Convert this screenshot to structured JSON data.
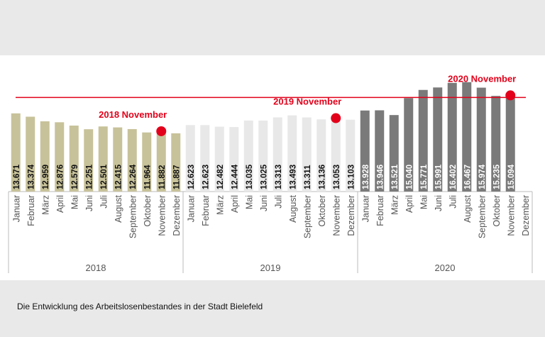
{
  "chart_data": {
    "type": "bar",
    "caption": "Die Entwicklung des Arbeitslosenbestandes in der Stadt Bielefeld",
    "months": [
      "Januar",
      "Februar",
      "März",
      "April",
      "Mai",
      "Juni",
      "Juli",
      "August",
      "September",
      "Oktober",
      "November",
      "Dezember"
    ],
    "series": [
      {
        "year": "2018",
        "color": "#c8c29a",
        "label_color": "#111111",
        "values": [
          13671,
          13374,
          12959,
          12876,
          12579,
          12251,
          12501,
          12415,
          12264,
          11964,
          11882,
          11887
        ],
        "labels": [
          "13.671",
          "13.374",
          "12.959",
          "12.876",
          "12.579",
          "12.251",
          "12.501",
          "12.415",
          "12.264",
          "11.964",
          "11.882",
          "11.887"
        ]
      },
      {
        "year": "2019",
        "color": "#e8e8e8",
        "label_color": "#111111",
        "values": [
          12623,
          12623,
          12482,
          12444,
          13035,
          13025,
          13313,
          13493,
          13311,
          13136,
          13053,
          13103
        ],
        "labels": [
          "12.623",
          "12.623",
          "12.482",
          "12.444",
          "13.035",
          "13.025",
          "13.313",
          "13.493",
          "13.311",
          "13.136",
          "13.053",
          "13.103"
        ]
      },
      {
        "year": "2020",
        "color": "#7a7a7a",
        "label_color": "#ffffff",
        "values": [
          13928,
          13946,
          13521,
          15040,
          15771,
          15991,
          16402,
          16467,
          15974,
          15235,
          15094,
          null
        ],
        "labels": [
          "13.928",
          "13.946",
          "13.521",
          "15.040",
          "15.771",
          "15.991",
          "16.402",
          "16.467",
          "15.974",
          "15.235",
          "15.094",
          ""
        ]
      }
    ],
    "highlights": [
      {
        "label": "2018 November",
        "year_index": 0,
        "month_index": 10
      },
      {
        "label": "2019 November",
        "year_index": 1,
        "month_index": 10
      },
      {
        "label": "2020 November",
        "year_index": 2,
        "month_index": 10
      }
    ],
    "reference_line_value": 15094,
    "highlight_color": "#e2001a"
  }
}
